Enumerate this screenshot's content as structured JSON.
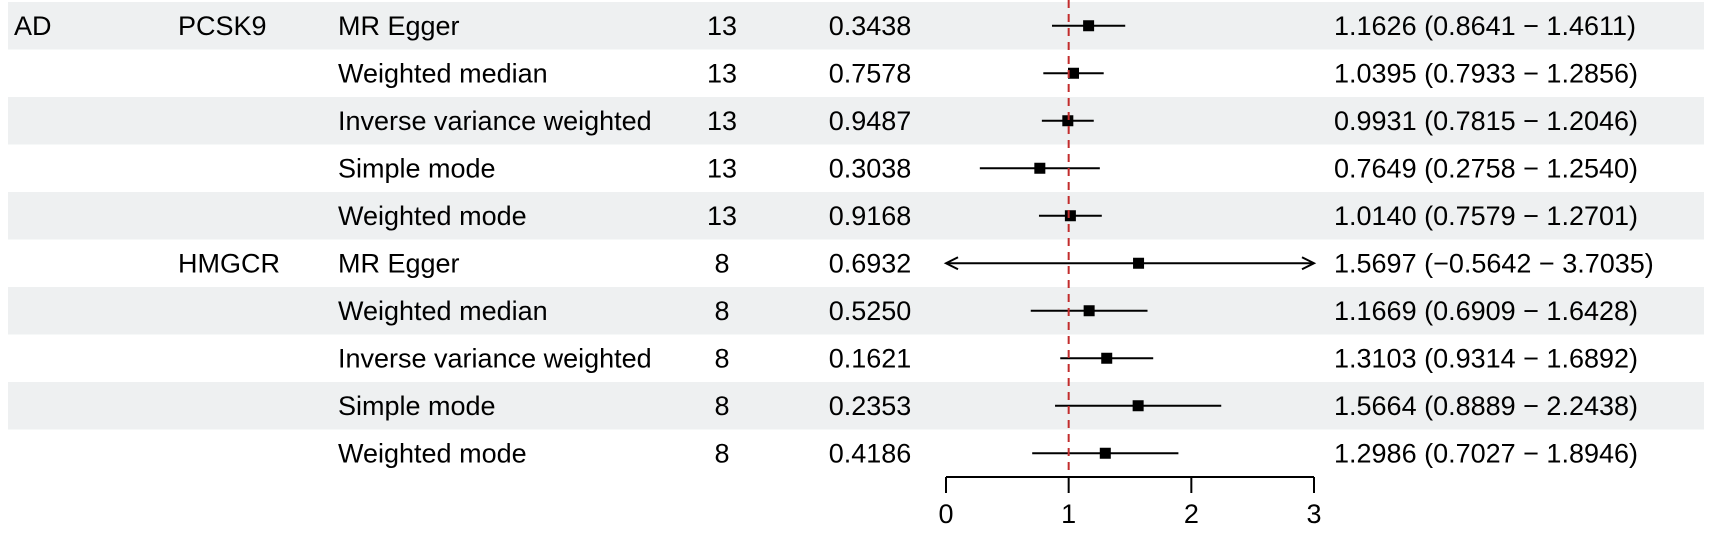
{
  "chart_data": {
    "type": "forest",
    "columns": [],
    "rows": [
      {
        "outcome": "AD",
        "exposure": "PCSK9",
        "method": "MR Egger",
        "nsnp": "13",
        "pval": "0.3438",
        "or": 1.1626,
        "lower": 0.8641,
        "upper": 1.4611,
        "ci_text": "1.1626 (0.8641 − 1.4611)"
      },
      {
        "outcome": "",
        "exposure": "",
        "method": "Weighted median",
        "nsnp": "13",
        "pval": "0.7578",
        "or": 1.0395,
        "lower": 0.7933,
        "upper": 1.2856,
        "ci_text": "1.0395 (0.7933 − 1.2856)"
      },
      {
        "outcome": "",
        "exposure": "",
        "method": "Inverse variance weighted",
        "nsnp": "13",
        "pval": "0.9487",
        "or": 0.9931,
        "lower": 0.7815,
        "upper": 1.2046,
        "ci_text": "0.9931 (0.7815 − 1.2046)"
      },
      {
        "outcome": "",
        "exposure": "",
        "method": "Simple mode",
        "nsnp": "13",
        "pval": "0.3038",
        "or": 0.7649,
        "lower": 0.2758,
        "upper": 1.254,
        "ci_text": "0.7649 (0.2758 − 1.2540)"
      },
      {
        "outcome": "",
        "exposure": "",
        "method": "Weighted mode",
        "nsnp": "13",
        "pval": "0.9168",
        "or": 1.014,
        "lower": 0.7579,
        "upper": 1.2701,
        "ci_text": "1.0140 (0.7579 − 1.2701)"
      },
      {
        "outcome": "",
        "exposure": "HMGCR",
        "method": "MR Egger",
        "nsnp": "8",
        "pval": "0.6932",
        "or": 1.5697,
        "lower": -0.5642,
        "upper": 3.7035,
        "ci_text": "1.5697 (−0.5642 − 3.7035)"
      },
      {
        "outcome": "",
        "exposure": "",
        "method": "Weighted median",
        "nsnp": "8",
        "pval": "0.5250",
        "or": 1.1669,
        "lower": 0.6909,
        "upper": 1.6428,
        "ci_text": "1.1669 (0.6909 − 1.6428)"
      },
      {
        "outcome": "",
        "exposure": "",
        "method": "Inverse variance weighted",
        "nsnp": "8",
        "pval": "0.1621",
        "or": 1.3103,
        "lower": 0.9314,
        "upper": 1.6892,
        "ci_text": "1.3103 (0.9314 − 1.6892)"
      },
      {
        "outcome": "",
        "exposure": "",
        "method": "Simple mode",
        "nsnp": "8",
        "pval": "0.2353",
        "or": 1.5664,
        "lower": 0.8889,
        "upper": 2.2438,
        "ci_text": "1.5664 (0.8889 − 2.2438)"
      },
      {
        "outcome": "",
        "exposure": "",
        "method": "Weighted mode",
        "nsnp": "8",
        "pval": "0.4186",
        "or": 1.2986,
        "lower": 0.7027,
        "upper": 1.8946,
        "ci_text": "1.2986 (0.7027 − 1.8946)"
      }
    ],
    "x_axis": {
      "range": [
        0,
        3
      ],
      "ticks": [
        0,
        1,
        2,
        3
      ],
      "tick_labels": [
        "0",
        "1",
        "2",
        "3"
      ]
    },
    "reference_line": 1,
    "shaded_rows": [
      0,
      2,
      4,
      6,
      8
    ],
    "colors": {
      "row_shade": "#eef0f1",
      "reference_line": "#c22c2c",
      "marks": "#000000"
    }
  }
}
